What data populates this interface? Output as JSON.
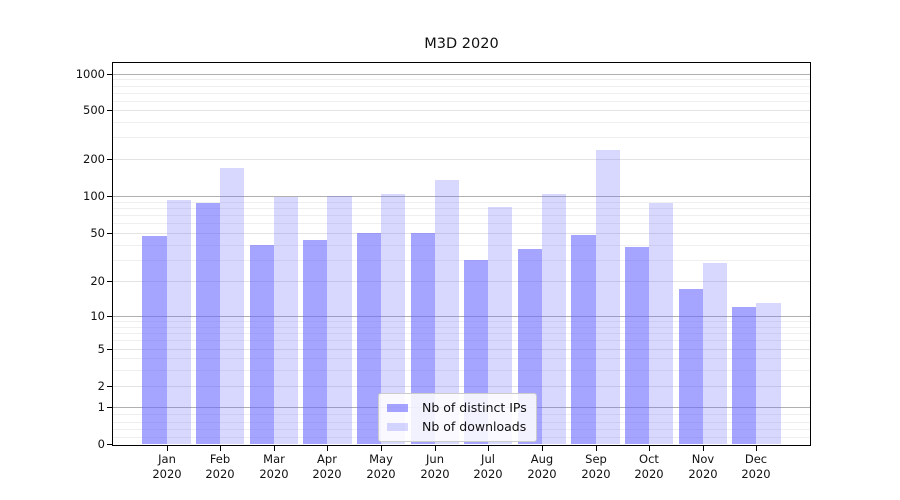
{
  "title": "M3D 2020",
  "legend": {
    "items": [
      {
        "label": "Nb of distinct IPs",
        "color": "rgba(100,100,255,0.58)"
      },
      {
        "label": "Nb of downloads",
        "color": "rgba(100,100,255,0.25)"
      }
    ]
  },
  "y_axis": {
    "tick_labels": [
      "1000",
      "500",
      "200",
      "100",
      "50",
      "20",
      "10",
      "5",
      "2",
      "1",
      "0"
    ]
  },
  "x_axis": {
    "year_label": "2020",
    "month_labels": [
      "Jan",
      "Feb",
      "Mar",
      "Apr",
      "May",
      "Jun",
      "Jul",
      "Aug",
      "Sep",
      "Oct",
      "Nov",
      "Dec"
    ]
  },
  "chart_data": {
    "type": "bar",
    "title": "M3D 2020",
    "categories": [
      "Jan 2020",
      "Feb 2020",
      "Mar 2020",
      "Apr 2020",
      "May 2020",
      "Jun 2020",
      "Jul 2020",
      "Aug 2020",
      "Sep 2020",
      "Oct 2020",
      "Nov 2020",
      "Dec 2020"
    ],
    "series": [
      {
        "name": "Nb of distinct IPs",
        "color": "rgba(100,100,255,0.58)",
        "values": [
          47,
          87,
          40,
          44,
          50,
          50,
          30,
          37,
          48,
          38,
          17,
          12
        ]
      },
      {
        "name": "Nb of downloads",
        "color": "rgba(100,100,255,0.25)",
        "values": [
          92,
          170,
          99,
          100,
          103,
          135,
          82,
          103,
          235,
          88,
          28,
          13
        ]
      }
    ],
    "xlabel": "",
    "ylabel": "",
    "y_scale": "symlog",
    "y_ticks": [
      0,
      1,
      2,
      5,
      10,
      20,
      50,
      100,
      200,
      500,
      1000
    ],
    "ylim": [
      0,
      1300
    ],
    "grid": true,
    "legend_position": "lower center"
  }
}
